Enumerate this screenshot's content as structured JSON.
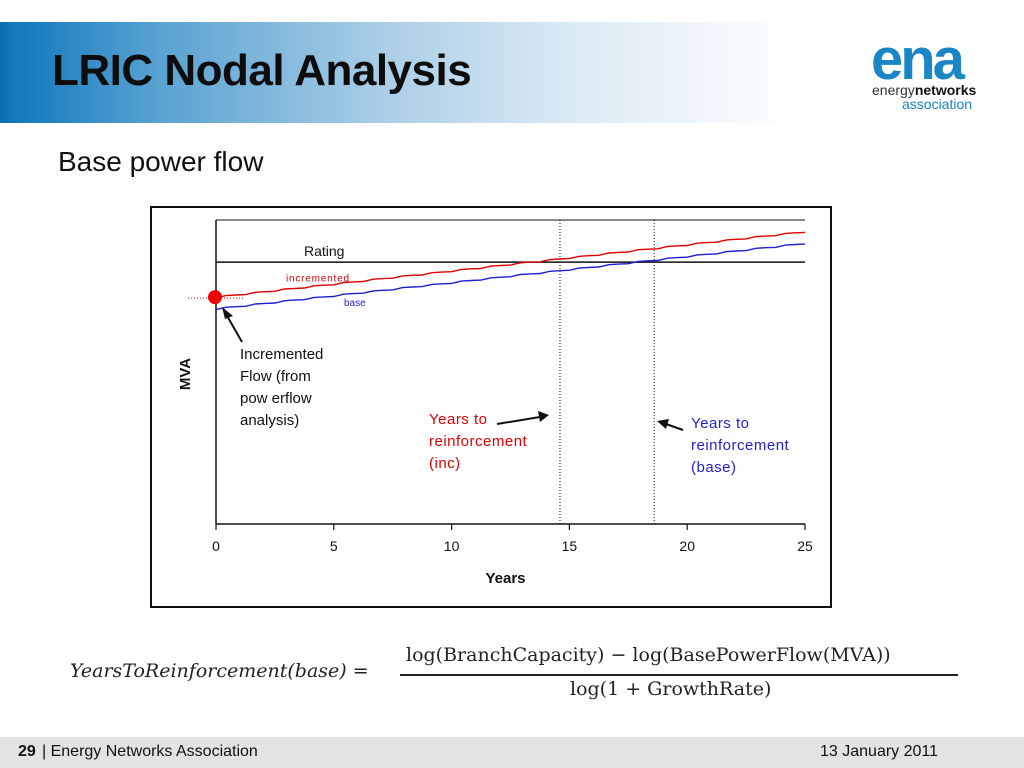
{
  "slide": {
    "title": "LRIC Nodal Analysis",
    "subtitle": "Base power flow",
    "logo": {
      "mark": "ena",
      "line1_a": "energy",
      "line1_b": "networks",
      "line2": "association"
    },
    "formula": {
      "lhs": "YearsToReinforcement(base) =",
      "numerator": "log(BranchCapacity) − log(BasePowerFlow(MVA))",
      "denominator": "log(1 + GrowthRate)"
    },
    "footer": {
      "page": "29",
      "separator": "|",
      "org": "Energy Networks Association",
      "date": "13  January 2011"
    }
  },
  "colors": {
    "increment_line": "#e00000",
    "base_line": "#1f1fd0",
    "header_blue": "#0f77bb",
    "logo_blue": "#1a86c6"
  },
  "chart_data": {
    "type": "line",
    "title": "",
    "xlabel": "Years",
    "ylabel": "MVA",
    "xlim": [
      0,
      25
    ],
    "x_ticks": [
      0,
      5,
      10,
      15,
      20,
      25
    ],
    "ylim": [
      0,
      130
    ],
    "y_ticks_shown": false,
    "grid": false,
    "series": [
      {
        "name": "incremented",
        "color": "#e00000",
        "x": [
          0,
          25
        ],
        "y": [
          97,
          125
        ]
      },
      {
        "name": "base",
        "color": "#1f1fd0",
        "x": [
          0,
          25
        ],
        "y": [
          92,
          120
        ]
      }
    ],
    "rating": {
      "label": "Rating",
      "y": 112
    },
    "vlines": [
      14.6,
      18.6
    ],
    "annotations": {
      "incremented_flow": "Incremented Flow  (from pow erflow analysis)",
      "years_inc": "Years to reinforcement (inc)",
      "years_base": "Years to reinforcement (base)"
    }
  }
}
